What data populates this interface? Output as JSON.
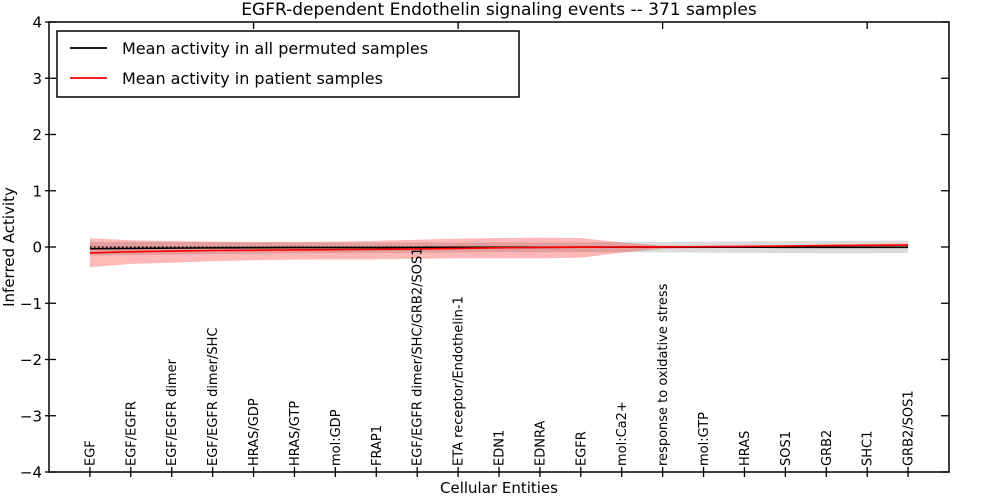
{
  "title": "EGFR-dependent Endothelin signaling events -- 371 samples",
  "legend": {
    "position": "upper-left",
    "items": [
      {
        "label": "Mean activity in all permuted samples",
        "color": "#000000"
      },
      {
        "label": "Mean activity in patient samples",
        "color": "#ff0000"
      }
    ]
  },
  "colors": {
    "permuted_line": "#000000",
    "patient_line": "#ff0000",
    "permuted_band": "rgba(130,130,130,0.28)",
    "patient_band": "rgba(255,0,0,0.28)",
    "reference_line": "#000000",
    "axes": "#000000",
    "background": "#ffffff"
  },
  "chart_data": {
    "type": "line",
    "title": "EGFR-dependent Endothelin signaling events -- 371 samples",
    "xlabel": "Cellular Entities",
    "ylabel": "Inferred Activity",
    "ylim": [
      -4,
      4
    ],
    "yticks": [
      4,
      3,
      2,
      1,
      0,
      -1,
      -2,
      -3,
      -4
    ],
    "xlim": [
      -1,
      21
    ],
    "top_axis_tick_positions": [
      4,
      9,
      14,
      19
    ],
    "grid": false,
    "legend_position": "upper-left",
    "categories": [
      "EGF",
      "EGF/EGFR",
      "EGF/EGFR dimer",
      "EGF/EGFR dimer/SHC",
      "HRAS/GDP",
      "HRAS/GTP",
      "mol:GDP",
      "FRAP1",
      "EGF/EGFR dimer/SHC/GRB2/SOS1",
      "ETA receptor/Endothelin-1",
      "EDN1",
      "EDNRA",
      "EGFR",
      "mol:Ca2+",
      "response to oxidative stress",
      "mol:GTP",
      "HRAS",
      "SOS1",
      "GRB2",
      "SHC1",
      "GRB2/SOS1"
    ],
    "series": [
      {
        "name": "Mean activity in all permuted samples",
        "color": "#000000",
        "style": "solid",
        "values": [
          -0.03,
          -0.025,
          -0.02,
          -0.015,
          -0.012,
          -0.01,
          -0.01,
          -0.01,
          -0.008,
          -0.006,
          -0.005,
          -0.005,
          -0.004,
          -0.002,
          -0.002,
          -0.003,
          -0.004,
          -0.005,
          -0.005,
          -0.005,
          -0.005
        ]
      },
      {
        "name": "Mean activity in patient samples",
        "color": "#ff0000",
        "style": "solid",
        "values": [
          -0.105,
          -0.085,
          -0.072,
          -0.062,
          -0.058,
          -0.052,
          -0.048,
          -0.042,
          -0.035,
          -0.025,
          -0.015,
          -0.008,
          -0.003,
          0.0,
          0.002,
          0.005,
          0.01,
          0.018,
          0.025,
          0.03,
          0.035
        ]
      }
    ],
    "bands": [
      {
        "name": "permuted-samples-band",
        "color": "rgba(130,130,130,0.28)",
        "upper": [
          0.09,
          0.09,
          0.088,
          0.085,
          0.082,
          0.08,
          0.08,
          0.08,
          0.08,
          0.08,
          0.08,
          0.08,
          0.082,
          0.088,
          0.092,
          0.096,
          0.1,
          0.105,
          0.11,
          0.112,
          0.115
        ],
        "lower": [
          -0.15,
          -0.142,
          -0.135,
          -0.127,
          -0.12,
          -0.113,
          -0.108,
          -0.105,
          -0.1,
          -0.095,
          -0.092,
          -0.09,
          -0.09,
          -0.092,
          -0.096,
          -0.1,
          -0.105,
          -0.108,
          -0.11,
          -0.11,
          -0.108
        ]
      },
      {
        "name": "patient-samples-band",
        "color": "rgba(255,0,0,0.28)",
        "upper": [
          0.155,
          0.12,
          0.105,
          0.095,
          0.09,
          0.09,
          0.095,
          0.11,
          0.13,
          0.15,
          0.16,
          0.165,
          0.16,
          0.08,
          0.022,
          0.022,
          0.028,
          0.032,
          0.04,
          0.05,
          0.06
        ],
        "lower": [
          -0.36,
          -0.3,
          -0.28,
          -0.25,
          -0.235,
          -0.225,
          -0.22,
          -0.22,
          -0.21,
          -0.2,
          -0.2,
          -0.2,
          -0.19,
          -0.1,
          -0.028,
          -0.02,
          -0.015,
          -0.01,
          -0.005,
          -0.005,
          -0.01
        ]
      }
    ],
    "reference_line": {
      "y": 0,
      "style": "dotted",
      "color": "#000000"
    }
  }
}
